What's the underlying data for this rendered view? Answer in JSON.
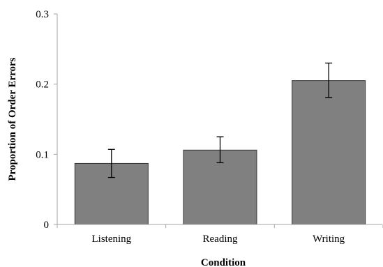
{
  "chart_data": {
    "type": "bar",
    "title": "",
    "xlabel": "Condition",
    "ylabel": "Proportion of Order Errors",
    "categories": [
      "Listening",
      "Reading",
      "Writing"
    ],
    "values": [
      0.087,
      0.106,
      0.205
    ],
    "error_bars": [
      {
        "low": 0.067,
        "high": 0.107
      },
      {
        "low": 0.088,
        "high": 0.125
      },
      {
        "low": 0.181,
        "high": 0.23
      }
    ],
    "ylim": [
      0,
      0.3
    ],
    "yticks": [
      {
        "value": 0,
        "label": "0"
      },
      {
        "value": 0.1,
        "label": "0.1"
      },
      {
        "value": 0.2,
        "label": "0.2"
      },
      {
        "value": 0.3,
        "label": "0.3"
      }
    ],
    "grid": false,
    "legend": "none",
    "colors": {
      "bar_fill": "#808080",
      "bar_stroke": "#333333",
      "axis": "#a6a6a6",
      "error_bar": "#000000"
    }
  }
}
